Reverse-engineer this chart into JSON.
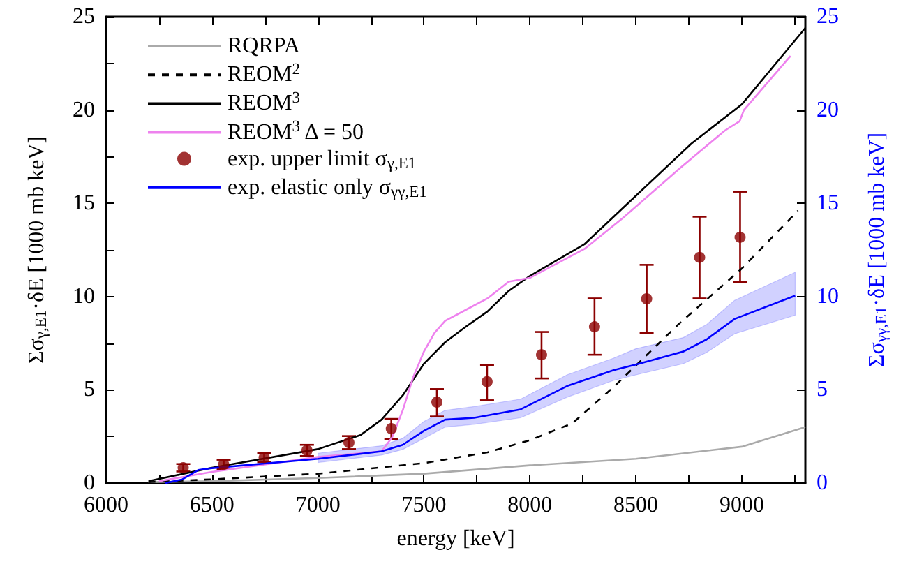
{
  "chart_data": {
    "type": "line",
    "xlabel": "energy [keV]",
    "ylabel": "Σσ$_{γ,E1}$·δE [1000 mb keV]",
    "y2label": "Σσ$_{γγ,E1}$·δE [1000 mb keV]",
    "xlim": [
      6000,
      9300
    ],
    "xticks": [
      6000,
      {
        "value": 6250,
        "label": null
      },
      6500,
      {
        "value": 6750,
        "label": null
      },
      7000,
      {
        "value": 7250,
        "label": null
      },
      7500,
      {
        "value": 7750,
        "label": null
      },
      8000,
      {
        "value": 8250,
        "label": null
      },
      8500,
      {
        "value": 8750,
        "label": null
      },
      9000,
      {
        "value": 9250,
        "label": null
      }
    ],
    "ylim": [
      0,
      25
    ],
    "yticks": [
      0,
      {
        "value": 2.5,
        "label": null
      },
      5,
      {
        "value": 7.5,
        "label": null
      },
      10,
      {
        "value": 12.5,
        "label": null
      },
      15,
      {
        "value": 17.5,
        "label": null
      },
      20,
      {
        "value": 22.5,
        "label": null
      },
      25
    ],
    "y2lim": [
      0,
      25
    ],
    "y2ticks": [
      0,
      5,
      10,
      15,
      20,
      25
    ],
    "grid": false,
    "legend": "top left",
    "marker": "none",
    "series": [
      {
        "name": "RQRPA",
        "color": "#aaaaaa",
        "line_style": "solid",
        "x": [
          6200,
          6500,
          7000,
          7500,
          8000,
          8500,
          9000,
          9300
        ],
        "values": [
          0.05,
          0.1,
          0.27,
          0.5,
          0.95,
          1.3,
          1.95,
          3.0
        ]
      },
      {
        "name": "REOM$^{2}$",
        "color": "#000000",
        "line_style": "dashed",
        "x": [
          6200,
          6500,
          7000,
          7500,
          7800,
          8000,
          8200,
          8400,
          8500,
          8700,
          9000,
          9265
        ],
        "values": [
          0.05,
          0.2,
          0.5,
          1.07,
          1.65,
          2.3,
          3.2,
          5.2,
          6.3,
          8.5,
          11.5,
          14.6
        ]
      },
      {
        "name": "REOM$^{3}$",
        "color": "#000000",
        "line_style": "solid",
        "x": [
          6200,
          6500,
          7000,
          7200,
          7300,
          7400,
          7500,
          7600,
          7700,
          7800,
          7900,
          7994,
          8257,
          8500,
          8762,
          9000,
          9300
        ],
        "values": [
          0.1,
          0.82,
          1.82,
          2.57,
          3.4,
          4.7,
          6.4,
          7.55,
          8.4,
          9.2,
          10.3,
          11.06,
          12.8,
          15.4,
          18.2,
          20.3,
          24.4
        ]
      },
      {
        "name": "REOM$^{3}$ Δ = 50",
        "color": "#ee82ee",
        "line_style": "solid",
        "x": [
          6250,
          6500,
          7000,
          7300,
          7350,
          7400,
          7450,
          7500,
          7550,
          7600,
          7700,
          7800,
          7900,
          8000,
          8257,
          8438,
          8700,
          8920,
          8990,
          9010,
          9230
        ],
        "values": [
          0.1,
          0.6,
          1.4,
          1.7,
          2.45,
          3.9,
          5.7,
          7.05,
          8.05,
          8.7,
          9.3,
          9.9,
          10.8,
          11.0,
          12.55,
          14.2,
          16.8,
          18.9,
          19.4,
          20.0,
          22.9
        ]
      },
      {
        "name": "exp. upper limit σ$_{γ,E1}$",
        "type": "scatter",
        "marker": "circle",
        "color": "#8b0000",
        "x": [
          6364,
          6555,
          6746,
          6948,
          7146,
          7346,
          7561,
          7798,
          8055,
          8305,
          8551,
          8801,
          8992
        ],
        "values": [
          0.82,
          1.0,
          1.37,
          1.75,
          2.17,
          2.92,
          4.34,
          5.44,
          6.88,
          8.38,
          9.88,
          12.1,
          13.18
        ],
        "errors": [
          [
            0.62,
            1.02
          ],
          [
            0.75,
            1.25
          ],
          [
            1.12,
            1.62
          ],
          [
            1.45,
            2.05
          ],
          [
            1.82,
            2.52
          ],
          [
            2.37,
            3.44
          ],
          [
            3.57,
            5.04
          ],
          [
            4.44,
            6.33
          ],
          [
            5.61,
            8.1
          ],
          [
            6.88,
            9.9
          ],
          [
            8.05,
            11.7
          ],
          [
            9.9,
            14.28
          ],
          [
            10.77,
            15.62
          ]
        ]
      },
      {
        "name": "exp. elastic only σ$_{γγ,E1}$",
        "axis": "y2",
        "color": "#0000ff",
        "line_style": "solid",
        "x": [
          6280,
          6360,
          6435,
          6500,
          7000,
          7300,
          7400,
          7500,
          7600,
          7737,
          7956,
          8175,
          8395,
          8500,
          8724,
          8834,
          8966,
          9252
        ],
        "values": [
          0,
          0.2,
          0.7,
          0.8,
          1.3,
          1.7,
          2.05,
          2.8,
          3.4,
          3.5,
          3.95,
          5.2,
          6.05,
          6.35,
          7.05,
          7.7,
          8.8,
          10.05
        ],
        "lower": [
          null,
          null,
          null,
          null,
          1.1,
          1.5,
          1.8,
          2.4,
          3.0,
          3.15,
          3.5,
          4.6,
          5.5,
          5.8,
          6.4,
          7.0,
          8.0,
          9.0
        ],
        "upper": [
          null,
          null,
          null,
          null,
          1.6,
          2.0,
          2.4,
          3.3,
          3.9,
          4.1,
          4.5,
          5.8,
          6.7,
          7.2,
          7.8,
          8.5,
          9.8,
          11.3
        ]
      }
    ]
  }
}
